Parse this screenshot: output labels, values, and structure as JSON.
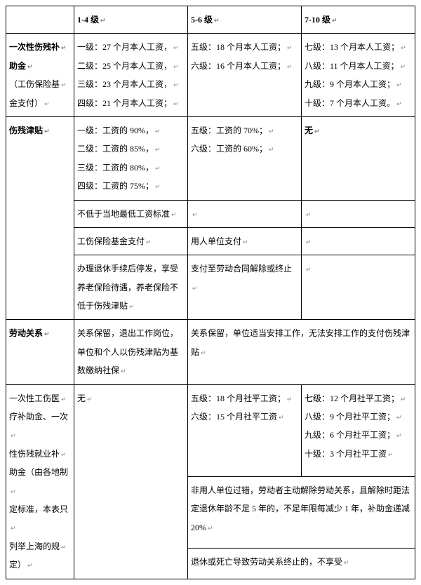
{
  "header": {
    "col0": "",
    "col1": "1-4 级",
    "col2": "5-6 级",
    "col3": "7-10 级"
  },
  "rows": {
    "subsidy": {
      "label_line1": "一次性伤残补",
      "label_line2": "助金",
      "label_line3": "（工伤保险基",
      "label_line4": "金支付）",
      "c1_l1": "一级：27 个月本人工资，",
      "c1_l2": "二级：25 个月本人工资，",
      "c1_l3": "三级：23 个月本人工资，",
      "c1_l4": "四级：21 个月本人工资；",
      "c2_l1": "五级：18 个月本人工资；",
      "c2_l2": "六级：16 个月本人工资；",
      "c3_l1": "七级：13 个月本人工资；",
      "c3_l2": "八级：11 个月本人工资；",
      "c3_l3": "九级：9 个月本人工资；",
      "c3_l4": "十级：7 个月本人工资。"
    },
    "allowance": {
      "label": "伤残津贴",
      "c1_l1": "一级：工资的 90%，",
      "c1_l2": "二级：工资的 85%，",
      "c1_l3": "三级：工资的 80%，",
      "c1_l4": "四级：工资的 75%；",
      "c2_l1": "五级：工资的 70%；",
      "c2_l2": "六级：工资的 60%；",
      "c3": "无",
      "note1": "不低于当地最低工资标准",
      "note2_c1": "工伤保险基金支付",
      "note2_c2": "用人单位支付",
      "note3_c1": "办理退休手续后停发，享受养老保险待遇，养老保险不低于伤残津贴",
      "note3_c2": "支付至劳动合同解除或终止"
    },
    "labor": {
      "label": "劳动关系",
      "c1": "关系保留，退出工作岗位，单位和个人以伤残津贴为基数缴纳社保",
      "c23": "关系保留，单位适当安排工作，无法安排工作的支付伤残津贴"
    },
    "medical": {
      "label_l1": "一次性工伤医",
      "label_l2": "疗补助金、一次",
      "label_l3": "性伤残就业补",
      "label_l4": "助金（由各地制",
      "label_l5": "定标准，本表只",
      "label_l6": "列举上海的规",
      "label_l7": "定）",
      "c1": "无",
      "c2_l1": "五级：18 个月社平工资；",
      "c2_l2": "六级：15 个月社平工资",
      "c3_l1": "七级：12 个月社平工资；",
      "c3_l2": "八级：9 个月社平工资；",
      "c3_l3": "九级：6 个月社平工资；",
      "c3_l4": "十级：3 个月社平工资",
      "note1": "非用人单位过错，劳动者主动解除劳动关系，且解除时距法定退休年龄不足 5 年的，不足年限每减少 1 年，补助金递减 20%",
      "note2": "退休或死亡导致劳动关系终止的，不享受"
    }
  }
}
